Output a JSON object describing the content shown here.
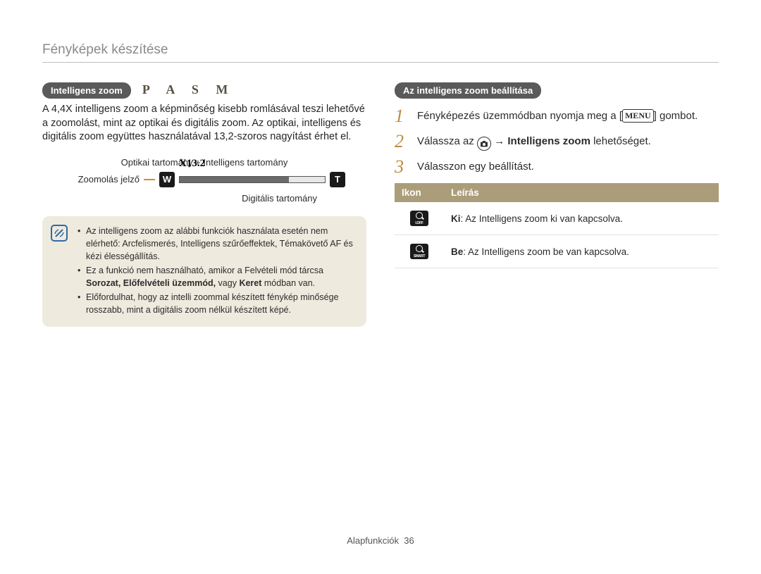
{
  "page": {
    "title": "Fényképek készítése",
    "footer_label": "Alapfunkciók",
    "footer_page": "36"
  },
  "left": {
    "pill_label": "Intelligens zoom",
    "mode_letters": "P A S M",
    "paragraph": "A 4,4X intelligens zoom a képminőség kisebb romlásával teszi lehetővé a zoomolást, mint az optikai és digitális zoom. Az optikai, intelligens és digitális zoom együttes használatával 13,2-szoros nagyítást érhet el.",
    "diagram": {
      "top_label": "Optikai tartomány + Intelligens tartomány",
      "left_label": "Zoomolás jelző",
      "value_text": "X13.2",
      "w_label": "W",
      "t_label": "T",
      "bottom_label": "Digitális tartomány",
      "fill_pct": 0.75,
      "orange_hex": "#e08a1d"
    },
    "note": {
      "bg": "#efeade",
      "items": [
        {
          "text": "Az intelligens zoom az alábbi funkciók használata esetén nem elérhető: Arcfelismerés, Intelligens szűrőeffektek, Témakövető AF és kézi élességállítás."
        },
        {
          "prefix": "Ez a funkció nem használható, amikor a Felvételi mód tárcsa ",
          "bold": "Sorozat, Előfelvételi üzemmód,",
          "mid": " vagy ",
          "bold2": "Keret",
          "suffix": " módban van."
        },
        {
          "text": "Előfordulhat, hogy az intelli zoommal készített fénykép minősége rosszabb, mint a digitális zoom nélkül készített képé."
        }
      ]
    }
  },
  "right": {
    "pill_label": "Az intelligens zoom beállítása",
    "steps": [
      {
        "num": "1",
        "pre": "Fényképezés üzemmódban nyomja meg a [",
        "badge": "MENU",
        "post": "] gombot."
      },
      {
        "num": "2",
        "pre": "Válassza az ",
        "icon": "camera",
        "post_pre": " → ",
        "bold": "Intelligens zoom",
        "suffix": " lehetőséget."
      },
      {
        "num": "3",
        "text": "Válasszon egy beállítást."
      }
    ],
    "table": {
      "header_bg": "#ab9d79",
      "col_icon": "Ikon",
      "col_desc": "Leírás",
      "rows": [
        {
          "sub": "I.OFF",
          "bold": "Ki",
          "desc": ": Az Intelligens zoom ki van kapcsolva."
        },
        {
          "sub": "SMART",
          "bold": "Be",
          "desc": ": Az Intelligens zoom be van kapcsolva."
        }
      ]
    }
  }
}
